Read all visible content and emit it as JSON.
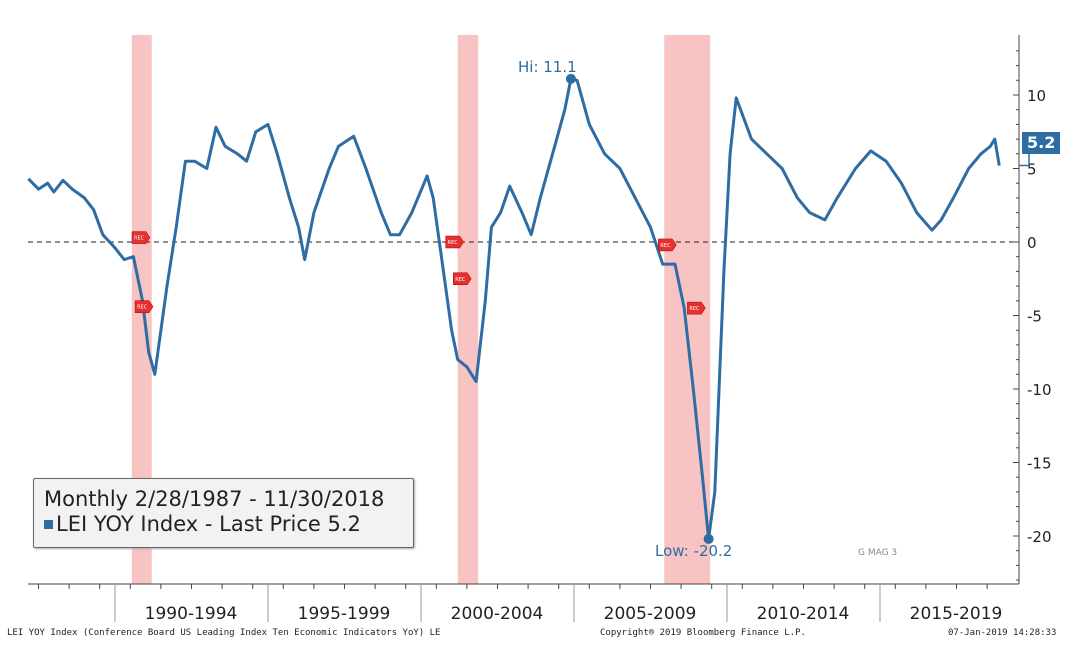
{
  "chart_data": {
    "type": "line",
    "title": "Monthly 2/28/1987 - 11/30/2018",
    "legend": {
      "series_label": "LEI YOY Index - Last Price",
      "last_value": "5.2",
      "placement": "bottom-left"
    },
    "ylim": [
      -23.5,
      14
    ],
    "yticks": [
      10,
      5,
      0,
      -5,
      -10,
      -15,
      -20
    ],
    "ytick_labels": [
      "10",
      "5",
      "0",
      "-5",
      "-10",
      "-15",
      "-20"
    ],
    "xlim": [
      1987.0,
      2019.5
    ],
    "periods": [
      {
        "label": "1990-1994",
        "start": 1990
      },
      {
        "label": "1995-1999",
        "start": 1995
      },
      {
        "label": "2000-2004",
        "start": 2000
      },
      {
        "label": "2005-2009",
        "start": 2005
      },
      {
        "label": "2010-2014",
        "start": 2010
      },
      {
        "label": "2015-2019",
        "start": 2015
      }
    ],
    "recessions": [
      [
        1990.55,
        1991.2
      ],
      [
        2001.2,
        2001.87
      ],
      [
        2007.95,
        2009.45
      ]
    ],
    "rec_marker_label": "REC",
    "series": [
      {
        "name": "LEI YOY Index",
        "color": "#2e6da4",
        "x": [
          1987.17,
          1987.5,
          1987.8,
          1988.0,
          1988.3,
          1988.6,
          1989.0,
          1989.3,
          1989.6,
          1990.0,
          1990.3,
          1990.6,
          1990.9,
          1991.1,
          1991.3,
          1991.7,
          1992.0,
          1992.3,
          1992.6,
          1993.0,
          1993.3,
          1993.6,
          1994.0,
          1994.3,
          1994.6,
          1995.0,
          1995.3,
          1995.7,
          1996.0,
          1996.2,
          1996.5,
          1997.0,
          1997.3,
          1997.8,
          1998.2,
          1998.7,
          1999.0,
          1999.3,
          1999.7,
          2000.0,
          2000.2,
          2000.4,
          2000.8,
          2001.0,
          2001.2,
          2001.5,
          2001.8,
          2002.1,
          2002.3,
          2002.6,
          2002.9,
          2003.3,
          2003.6,
          2003.9,
          2004.3,
          2004.7,
          2004.9,
          2005.1,
          2005.5,
          2006.0,
          2006.5,
          2007.0,
          2007.5,
          2007.9,
          2008.3,
          2008.6,
          2008.9,
          2009.2,
          2009.4,
          2009.6,
          2009.9,
          2010.1,
          2010.3,
          2010.8,
          2011.3,
          2011.8,
          2012.3,
          2012.7,
          2013.2,
          2013.6,
          2014.2,
          2014.7,
          2015.2,
          2015.7,
          2016.2,
          2016.7,
          2017.0,
          2017.4,
          2017.9,
          2018.3,
          2018.6,
          2018.75,
          2018.9
        ],
        "y": [
          4.3,
          3.6,
          4.0,
          3.4,
          4.2,
          3.6,
          3.0,
          2.2,
          0.5,
          -0.4,
          -1.2,
          -1.0,
          -4.0,
          -7.5,
          -9.0,
          -3.0,
          1.0,
          5.5,
          5.5,
          5.0,
          7.8,
          6.5,
          6.0,
          5.5,
          7.5,
          8.0,
          6.0,
          3.0,
          1.0,
          -1.2,
          2.0,
          5.0,
          6.5,
          7.2,
          5.0,
          2.0,
          0.5,
          0.5,
          2.0,
          3.5,
          4.5,
          3.0,
          -3.0,
          -6.0,
          -8.0,
          -8.5,
          -9.5,
          -4.0,
          1.0,
          2.0,
          3.8,
          2.0,
          0.5,
          3.0,
          6.0,
          9.0,
          11.1,
          11.0,
          8.0,
          6.0,
          5.0,
          3.0,
          1.0,
          -1.5,
          -1.5,
          -4.5,
          -10.0,
          -16.0,
          -20.2,
          -17.0,
          -2.0,
          6.0,
          9.8,
          7.0,
          6.0,
          5.0,
          3.0,
          2.0,
          1.5,
          3.0,
          5.0,
          6.2,
          5.5,
          4.0,
          2.0,
          0.8,
          1.5,
          3.0,
          5.0,
          6.0,
          6.5,
          7.0,
          5.2
        ]
      }
    ],
    "annotations": {
      "high": {
        "label": "Hi: 11.1",
        "x": 2004.9,
        "y": 11.1
      },
      "low": {
        "label": "Low: -20.2",
        "x": 2009.4,
        "y": -20.2
      },
      "last_tag": "5.2"
    }
  },
  "footer": {
    "left": "LEI YOY Index (Conference Board US Leading Index Ten Economic Indicators YoY) LE",
    "center": "Copyright® 2019 Bloomberg Finance L.P.",
    "right": "07-Jan-2019 14:28:33"
  },
  "watermark": "G MAG 3"
}
